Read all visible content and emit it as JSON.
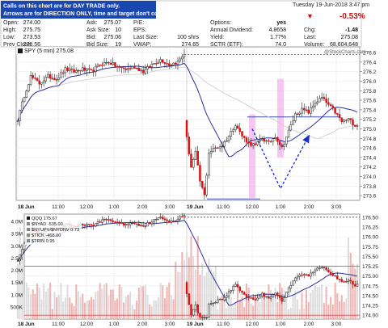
{
  "header": {
    "note_line1": "Calls on this chart are for DAY TRADE only.",
    "note_line2": "Arrows are for DIRECTION ONLY, time and target don't count.",
    "date_time": "Tuesday  19-Jun-2018  3:47 pm",
    "change_pct": "-0.53%",
    "watermark": "@StockCharts.com",
    "fields": [
      {
        "label": "Open:",
        "value": "274.00"
      },
      {
        "label": "High:",
        "value": "275.75"
      },
      {
        "label": "Low:",
        "value": "273.53"
      },
      {
        "label": "Prev Close:",
        "value": "276.56"
      },
      {
        "label": "Ask:",
        "value": "275.07"
      },
      {
        "label": "Ask Size:",
        "value": "10"
      },
      {
        "label": "Bid:",
        "value": "275.06"
      },
      {
        "label": "Bid Size:",
        "value": "19"
      },
      {
        "label": "P/E:",
        "value": ""
      },
      {
        "label": "EPS:",
        "value": ""
      },
      {
        "label": "Last Size:",
        "value": "100 shrs"
      },
      {
        "label": "VWAP:",
        "value": "274.65"
      },
      {
        "label": "Options:",
        "value": "yes"
      },
      {
        "label": "Annual Dividend:",
        "value": "4.8658"
      },
      {
        "label": "Yield:",
        "value": "1.77%"
      },
      {
        "label": "SCTR (ETF):",
        "value": "74.0"
      },
      {
        "label": "Chg:",
        "value": "-1.48"
      },
      {
        "label": "Last:",
        "value": "275.08"
      },
      {
        "label": "Volume:",
        "value": "68,604,648"
      }
    ]
  },
  "chart_data": [
    {
      "type": "candlestick",
      "legend": "SPY (5 min) 275.08",
      "x_tick_labels": [
        "18 Jun",
        "11:00",
        "12:00",
        "1:00",
        "2:00",
        "3:00",
        "19 Jun",
        "11:00",
        "12:00",
        "1:00",
        "2:00",
        "3:00"
      ],
      "y_ticks": [
        273.6,
        273.8,
        274.0,
        274.2,
        274.4,
        274.6,
        274.8,
        275.0,
        275.2,
        275.4,
        275.6,
        275.8,
        276.0,
        276.2,
        276.4,
        276.6
      ],
      "ylim": [
        273.5,
        276.72
      ],
      "close_series": [
        {
          "day": 0,
          "bar": 0,
          "value": 275.2
        },
        {
          "day": 0,
          "bar": 3,
          "value": 275.7
        },
        {
          "day": 0,
          "bar": 6,
          "value": 276.1
        },
        {
          "day": 0,
          "bar": 10,
          "value": 275.95
        },
        {
          "day": 0,
          "bar": 14,
          "value": 276.1
        },
        {
          "day": 0,
          "bar": 18,
          "value": 276.05
        },
        {
          "day": 0,
          "bar": 22,
          "value": 276.25
        },
        {
          "day": 0,
          "bar": 26,
          "value": 276.2
        },
        {
          "day": 0,
          "bar": 30,
          "value": 276.25
        },
        {
          "day": 0,
          "bar": 34,
          "value": 276.2
        },
        {
          "day": 0,
          "bar": 38,
          "value": 276.35
        },
        {
          "day": 0,
          "bar": 42,
          "value": 276.4
        },
        {
          "day": 0,
          "bar": 46,
          "value": 276.3
        },
        {
          "day": 0,
          "bar": 50,
          "value": 276.25
        },
        {
          "day": 0,
          "bar": 54,
          "value": 276.3
        },
        {
          "day": 0,
          "bar": 58,
          "value": 276.2
        },
        {
          "day": 0,
          "bar": 62,
          "value": 276.35
        },
        {
          "day": 0,
          "bar": 66,
          "value": 276.45
        },
        {
          "day": 0,
          "bar": 70,
          "value": 276.35
        },
        {
          "day": 0,
          "bar": 74,
          "value": 276.4
        },
        {
          "day": 0,
          "bar": 77,
          "value": 276.58
        },
        {
          "day": 1,
          "bar": 0,
          "value": 274.8
        },
        {
          "day": 1,
          "bar": 2,
          "value": 274.2
        },
        {
          "day": 1,
          "bar": 4,
          "value": 274.5
        },
        {
          "day": 1,
          "bar": 6,
          "value": 273.9
        },
        {
          "day": 1,
          "bar": 8,
          "value": 273.6
        },
        {
          "day": 1,
          "bar": 10,
          "value": 274.5
        },
        {
          "day": 1,
          "bar": 13,
          "value": 274.6
        },
        {
          "day": 1,
          "bar": 16,
          "value": 274.65
        },
        {
          "day": 1,
          "bar": 19,
          "value": 274.85
        },
        {
          "day": 1,
          "bar": 22,
          "value": 275.1
        },
        {
          "day": 1,
          "bar": 25,
          "value": 274.85
        },
        {
          "day": 1,
          "bar": 28,
          "value": 274.7
        },
        {
          "day": 1,
          "bar": 31,
          "value": 274.65
        },
        {
          "day": 1,
          "bar": 34,
          "value": 274.8
        },
        {
          "day": 1,
          "bar": 37,
          "value": 274.7
        },
        {
          "day": 1,
          "bar": 40,
          "value": 274.85
        },
        {
          "day": 1,
          "bar": 43,
          "value": 274.6
        },
        {
          "day": 1,
          "bar": 46,
          "value": 274.95
        },
        {
          "day": 1,
          "bar": 49,
          "value": 275.3
        },
        {
          "day": 1,
          "bar": 52,
          "value": 275.4
        },
        {
          "day": 1,
          "bar": 55,
          "value": 275.35
        },
        {
          "day": 1,
          "bar": 58,
          "value": 275.55
        },
        {
          "day": 1,
          "bar": 61,
          "value": 275.65
        },
        {
          "day": 1,
          "bar": 64,
          "value": 275.5
        },
        {
          "day": 1,
          "bar": 67,
          "value": 275.35
        },
        {
          "day": 1,
          "bar": 70,
          "value": 275.15
        },
        {
          "day": 1,
          "bar": 73,
          "value": 275.2
        },
        {
          "day": 1,
          "bar": 76,
          "value": 275.08
        }
      ],
      "horizontal_lines": [
        276.56,
        275.25,
        273.53
      ],
      "highlight_zones": [
        {
          "x_label": "12:00",
          "low": 273.55,
          "high": 275.3
        },
        {
          "x_label": "1:00",
          "low": 274.4,
          "high": 276.05
        }
      ],
      "projection_arrow": [
        {
          "x_label": "12:00",
          "value": 275.0
        },
        {
          "x_label": "1:00",
          "value": 273.75
        },
        {
          "x_label": "2:00",
          "value": 274.85
        }
      ]
    },
    {
      "type": "candlestick",
      "legend": [
        "QQQ 175.67",
        "$NYAD -535.00",
        "$NYUPV/$NYDNV 0.73",
        "$TICK -468.00",
        "$TRIN 0.95"
      ],
      "x_tick_labels": [
        "18 Jun",
        "11:00",
        "12:00",
        "1:00",
        "2:00",
        "3:00",
        "19 Jun",
        "11:00",
        "12:00",
        "1:00",
        "2:00",
        "3:00"
      ],
      "y_ticks_right": [
        174.0,
        174.25,
        174.5,
        174.75,
        175.0,
        175.25,
        175.5,
        175.75,
        176.0,
        176.25,
        176.5
      ],
      "ylim": [
        173.9,
        176.58
      ],
      "y_ticks_left": [
        "500K",
        "1.0M",
        "1.5M",
        "2.0M",
        "2.5M",
        "3.0M",
        "3.5M",
        "4.0M"
      ],
      "volume_ylim_m": [
        0,
        4.3
      ]
    }
  ]
}
